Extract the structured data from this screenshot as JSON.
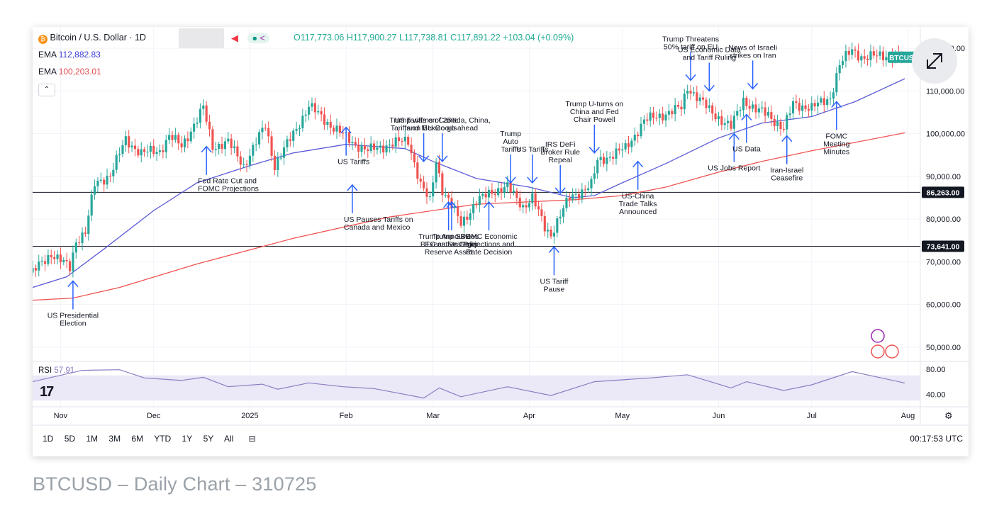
{
  "header": {
    "symbol": "Bitcoin / U.S. Dollar · 1D",
    "ohlc": "O117,773.06 H117,900.27 L117,738.81 C117,891.22 +103.04 (+0.09%)",
    "ema_fast_label": "EMA",
    "ema_fast_value": "112,882.83",
    "ema_slow_label": "EMA",
    "ema_slow_value": "100,203.01",
    "collapse_glyph": "⌃"
  },
  "timeframes": [
    "1D",
    "5D",
    "1M",
    "3M",
    "6M",
    "YTD",
    "1Y",
    "5Y",
    "All"
  ],
  "clock": "00:17:53 UTC",
  "caption": "BTCUSD – Daily Chart – 310725",
  "icons": [
    "bitcoin-icon",
    "flag-icon",
    "share-icon",
    "expand-icon",
    "collapse-icon",
    "calendar-icon",
    "settings-icon",
    "tradingview-logo",
    "lightning-icon",
    "flag-badge-icon"
  ],
  "colors": {
    "up": "#26a69a",
    "down": "#ef5350",
    "ema_fast": "#5b5bd6",
    "ema_slow": "#ef5350",
    "rsi": "#8e7cc3",
    "rsi_band": "#ebe8f7",
    "annotation": "#2962ff",
    "symbol_badge": "#26a69a"
  },
  "chart_data": {
    "type": "candlestick",
    "title": "Bitcoin / U.S. Dollar · 1D",
    "x_ticks": [
      "Nov",
      "Dec",
      "2025",
      "Feb",
      "Mar",
      "Apr",
      "May",
      "Jun",
      "Jul",
      "Aug"
    ],
    "x_tick_dates": [
      "2024-11-01",
      "2024-12-01",
      "2025-01-01",
      "2025-02-01",
      "2025-03-01",
      "2025-04-01",
      "2025-05-01",
      "2025-06-01",
      "2025-07-01",
      "2025-08-01"
    ],
    "y_ticks": [
      "50,000.00",
      "60,000.00",
      "70,000.00",
      "80,000.00",
      "90,000.00",
      "100,000.00",
      "110,000.00",
      "120,000.00"
    ],
    "y_tick_values": [
      50000,
      60000,
      70000,
      80000,
      90000,
      100000,
      110000,
      120000
    ],
    "ylim": [
      47000,
      125000
    ],
    "x_range": [
      "2024-10-23",
      "2025-08-05"
    ],
    "horizontal_lines": [
      {
        "value": 86263,
        "label": "86,263.00"
      },
      {
        "value": 73641,
        "label": "73,641.00"
      }
    ],
    "symbol_badge": "BTCUSD",
    "price_series": [
      {
        "date": "2024-10-23",
        "close": 67500
      },
      {
        "date": "2024-10-29",
        "close": 72000
      },
      {
        "date": "2024-11-04",
        "close": 68500
      },
      {
        "date": "2024-11-06",
        "close": 75000
      },
      {
        "date": "2024-11-09",
        "close": 77000
      },
      {
        "date": "2024-11-12",
        "close": 88000
      },
      {
        "date": "2024-11-17",
        "close": 90500
      },
      {
        "date": "2024-11-22",
        "close": 98500
      },
      {
        "date": "2024-11-27",
        "close": 95500
      },
      {
        "date": "2024-12-03",
        "close": 96000
      },
      {
        "date": "2024-12-06",
        "close": 99500
      },
      {
        "date": "2024-12-10",
        "close": 97000
      },
      {
        "date": "2024-12-17",
        "close": 106000
      },
      {
        "date": "2024-12-20",
        "close": 97000
      },
      {
        "date": "2024-12-25",
        "close": 98000
      },
      {
        "date": "2024-12-30",
        "close": 92500
      },
      {
        "date": "2025-01-06",
        "close": 102000
      },
      {
        "date": "2025-01-09",
        "close": 92500
      },
      {
        "date": "2025-01-15",
        "close": 100000
      },
      {
        "date": "2025-01-20",
        "close": 106500
      },
      {
        "date": "2025-01-27",
        "close": 102000
      },
      {
        "date": "2025-02-03",
        "close": 98000
      },
      {
        "date": "2025-02-08",
        "close": 96000
      },
      {
        "date": "2025-02-15",
        "close": 97500
      },
      {
        "date": "2025-02-21",
        "close": 98500
      },
      {
        "date": "2025-02-25",
        "close": 88000
      },
      {
        "date": "2025-02-28",
        "close": 84000
      },
      {
        "date": "2025-03-02",
        "close": 94000
      },
      {
        "date": "2025-03-04",
        "close": 87000
      },
      {
        "date": "2025-03-10",
        "close": 79000
      },
      {
        "date": "2025-03-15",
        "close": 84000
      },
      {
        "date": "2025-03-20",
        "close": 86500
      },
      {
        "date": "2025-03-25",
        "close": 87500
      },
      {
        "date": "2025-03-30",
        "close": 83000
      },
      {
        "date": "2025-04-02",
        "close": 85000
      },
      {
        "date": "2025-04-06",
        "close": 78000
      },
      {
        "date": "2025-04-08",
        "close": 76500
      },
      {
        "date": "2025-04-10",
        "close": 79500
      },
      {
        "date": "2025-04-14",
        "close": 85000
      },
      {
        "date": "2025-04-21",
        "close": 88000
      },
      {
        "date": "2025-04-23",
        "close": 93500
      },
      {
        "date": "2025-05-02",
        "close": 96500
      },
      {
        "date": "2025-05-08",
        "close": 103000
      },
      {
        "date": "2025-05-12",
        "close": 104000
      },
      {
        "date": "2025-05-20",
        "close": 106000
      },
      {
        "date": "2025-05-22",
        "close": 111000
      },
      {
        "date": "2025-05-29",
        "close": 105500
      },
      {
        "date": "2025-06-05",
        "close": 101500
      },
      {
        "date": "2025-06-09",
        "close": 108000
      },
      {
        "date": "2025-06-13",
        "close": 105500
      },
      {
        "date": "2025-06-17",
        "close": 104500
      },
      {
        "date": "2025-06-22",
        "close": 101000
      },
      {
        "date": "2025-06-25",
        "close": 107000
      },
      {
        "date": "2025-07-01",
        "close": 106000
      },
      {
        "date": "2025-07-07",
        "close": 108500
      },
      {
        "date": "2025-07-10",
        "close": 116000
      },
      {
        "date": "2025-07-14",
        "close": 119800
      },
      {
        "date": "2025-07-18",
        "close": 117500
      },
      {
        "date": "2025-07-23",
        "close": 118500
      },
      {
        "date": "2025-07-30",
        "close": 117900
      }
    ],
    "ema_fast": [
      {
        "date": "2024-10-23",
        "value": 64000
      },
      {
        "date": "2024-11-03",
        "value": 66500
      },
      {
        "date": "2024-11-15",
        "value": 73000
      },
      {
        "date": "2024-12-01",
        "value": 82000
      },
      {
        "date": "2024-12-15",
        "value": 88500
      },
      {
        "date": "2025-01-01",
        "value": 92500
      },
      {
        "date": "2025-01-15",
        "value": 95500
      },
      {
        "date": "2025-02-01",
        "value": 97500
      },
      {
        "date": "2025-02-20",
        "value": 96500
      },
      {
        "date": "2025-03-01",
        "value": 93500
      },
      {
        "date": "2025-03-15",
        "value": 89500
      },
      {
        "date": "2025-04-01",
        "value": 87500
      },
      {
        "date": "2025-04-15",
        "value": 85000
      },
      {
        "date": "2025-04-22",
        "value": 85500
      },
      {
        "date": "2025-05-01",
        "value": 88500
      },
      {
        "date": "2025-05-15",
        "value": 93000
      },
      {
        "date": "2025-06-01",
        "value": 99000
      },
      {
        "date": "2025-06-15",
        "value": 102500
      },
      {
        "date": "2025-07-01",
        "value": 104000
      },
      {
        "date": "2025-07-15",
        "value": 107500
      },
      {
        "date": "2025-07-31",
        "value": 112883
      }
    ],
    "ema_slow": [
      {
        "date": "2024-10-23",
        "value": 61000
      },
      {
        "date": "2024-11-05",
        "value": 61500
      },
      {
        "date": "2024-11-20",
        "value": 64000
      },
      {
        "date": "2024-12-15",
        "value": 69500
      },
      {
        "date": "2025-01-15",
        "value": 75500
      },
      {
        "date": "2025-02-15",
        "value": 80500
      },
      {
        "date": "2025-03-15",
        "value": 83500
      },
      {
        "date": "2025-04-15",
        "value": 84500
      },
      {
        "date": "2025-05-01",
        "value": 85500
      },
      {
        "date": "2025-05-15",
        "value": 87500
      },
      {
        "date": "2025-06-01",
        "value": 91000
      },
      {
        "date": "2025-06-15",
        "value": 93500
      },
      {
        "date": "2025-07-01",
        "value": 96000
      },
      {
        "date": "2025-07-31",
        "value": 100203
      }
    ],
    "rsi": {
      "label": "RSI",
      "value": "57.91",
      "ticks": [
        "80.00",
        "40.00"
      ],
      "tick_values": [
        80,
        40
      ],
      "series": [
        {
          "date": "2024-10-23",
          "value": 60
        },
        {
          "date": "2024-11-08",
          "value": 78
        },
        {
          "date": "2024-11-20",
          "value": 79
        },
        {
          "date": "2024-11-28",
          "value": 66
        },
        {
          "date": "2024-12-10",
          "value": 62
        },
        {
          "date": "2024-12-17",
          "value": 67
        },
        {
          "date": "2024-12-25",
          "value": 52
        },
        {
          "date": "2025-01-05",
          "value": 56
        },
        {
          "date": "2025-01-10",
          "value": 48
        },
        {
          "date": "2025-01-20",
          "value": 58
        },
        {
          "date": "2025-01-31",
          "value": 52
        },
        {
          "date": "2025-02-10",
          "value": 49
        },
        {
          "date": "2025-02-26",
          "value": 34
        },
        {
          "date": "2025-03-03",
          "value": 50
        },
        {
          "date": "2025-03-10",
          "value": 36
        },
        {
          "date": "2025-03-25",
          "value": 52
        },
        {
          "date": "2025-04-08",
          "value": 38
        },
        {
          "date": "2025-04-22",
          "value": 60
        },
        {
          "date": "2025-05-10",
          "value": 66
        },
        {
          "date": "2025-05-22",
          "value": 71
        },
        {
          "date": "2025-06-05",
          "value": 50
        },
        {
          "date": "2025-06-10",
          "value": 60
        },
        {
          "date": "2025-06-22",
          "value": 46
        },
        {
          "date": "2025-07-01",
          "value": 55
        },
        {
          "date": "2025-07-14",
          "value": 76
        },
        {
          "date": "2025-07-31",
          "value": 57.91
        }
      ]
    },
    "annotations": [
      {
        "text": "US Presidential\nElection",
        "date": "2024-11-05",
        "value": 65500,
        "dir": "up",
        "align": "center"
      },
      {
        "text": "Fed Rate Cut and\nFOMC Projections",
        "date": "2024-12-18",
        "value": 97000,
        "dir": "up",
        "align": "left"
      },
      {
        "text": "US Tariffs",
        "date": "2025-02-01",
        "value": 101500,
        "dir": "up",
        "align": "left"
      },
      {
        "text": "US Pauses Tariffs on\nCanada and Mexico",
        "date": "2025-02-03",
        "value": 88000,
        "dir": "up",
        "align": "left"
      },
      {
        "text": "Trump warns of 25%\nTariffs on EU Goods",
        "date": "2025-02-26",
        "value": 93500,
        "dir": "down",
        "align": "center"
      },
      {
        "text": "US Tariffs on Canada, China,\nand Mexico go ahead",
        "date": "2025-03-04",
        "value": 93500,
        "dir": "down",
        "align": "center"
      },
      {
        "text": "Trump Announces\nBTC as Strategic\nReserve Asset",
        "date": "2025-03-06",
        "value": 84000,
        "dir": "up",
        "align": "center"
      },
      {
        "text": "Trump SBR\nExecutive Order",
        "date": "2025-03-07",
        "value": 84000,
        "dir": "up",
        "align": "center"
      },
      {
        "text": "FOMC Economic\nProjections and\nRate Decision",
        "date": "2025-03-19",
        "value": 84000,
        "dir": "up",
        "align": "center"
      },
      {
        "text": "Trump\nAuto\nTariffs",
        "date": "2025-03-26",
        "value": 88500,
        "dir": "down",
        "align": "center"
      },
      {
        "text": "US Tariffs",
        "date": "2025-04-02",
        "value": 88500,
        "dir": "down",
        "align": "center"
      },
      {
        "text": "IRS DeFi\nBroker Rule\nRepeal",
        "date": "2025-04-11",
        "value": 86000,
        "dir": "down",
        "align": "center"
      },
      {
        "text": "US Tariff\nPause",
        "date": "2025-04-09",
        "value": 73500,
        "dir": "up",
        "align": "center"
      },
      {
        "text": "Trump U-turns on\nChina and Fed\nChair Powell",
        "date": "2025-04-22",
        "value": 95500,
        "dir": "down",
        "align": "center"
      },
      {
        "text": "US-China\nTrade Talks\nAnnounced",
        "date": "2025-05-06",
        "value": 93500,
        "dir": "up",
        "align": "center"
      },
      {
        "text": "Trump Threatens\n50% tariff on EU",
        "date": "2025-05-23",
        "value": 112500,
        "dir": "down",
        "align": "center"
      },
      {
        "text": "US Economic Data\nand Tariff Ruling",
        "date": "2025-05-29",
        "value": 110000,
        "dir": "down",
        "align": "center"
      },
      {
        "text": "US Jobs Report",
        "date": "2025-06-06",
        "value": 100000,
        "dir": "up",
        "align": "center"
      },
      {
        "text": "US Data",
        "date": "2025-06-10",
        "value": 104500,
        "dir": "up",
        "align": "center"
      },
      {
        "text": "News of Israeli\nstrikes on Iran",
        "date": "2025-06-12",
        "value": 110500,
        "dir": "down",
        "align": "center"
      },
      {
        "text": "Iran-Israel\nCeasefire",
        "date": "2025-06-23",
        "value": 99500,
        "dir": "up",
        "align": "center"
      },
      {
        "text": "FOMC\nMeeting\nMinutes",
        "date": "2025-07-09",
        "value": 107500,
        "dir": "up",
        "align": "center"
      }
    ]
  }
}
